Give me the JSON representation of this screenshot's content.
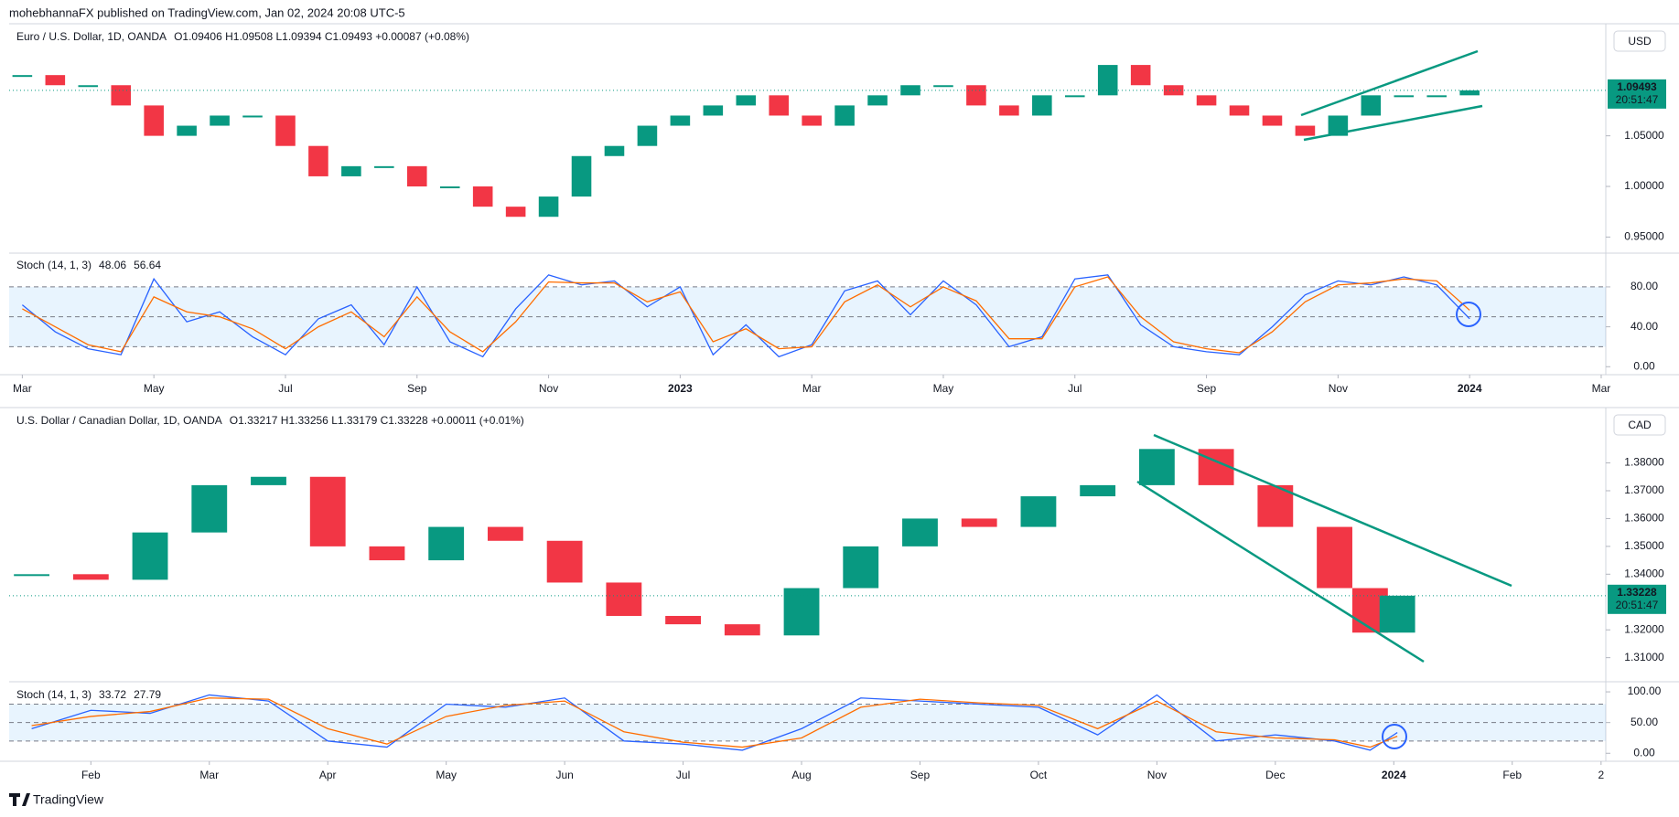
{
  "header": {
    "text": "mohebhannaFX published on TradingView.com, Jan 02, 2024 20:08 UTC-5"
  },
  "footer": {
    "logo": "TradingView"
  },
  "chart_data": [
    {
      "type": "candlestick",
      "title": "Euro / U.S. Dollar, 1D, OANDA",
      "ohlc": "O1.09406 H1.09508 L1.09394 C1.09493 +0.00087 (+0.08%)",
      "currency": "USD",
      "countdown": "20:51:47",
      "up_color": "#089981",
      "down_color": "#f23645",
      "x": [
        0,
        0.5,
        1,
        1.5,
        2,
        2.5,
        3,
        3.5,
        4,
        4.5,
        5,
        5.5,
        6,
        6.5,
        7,
        7.5,
        8,
        8.5,
        9,
        9.5,
        10,
        10.5,
        11,
        11.5,
        12,
        12.5,
        13,
        13.5,
        14,
        14.5,
        15,
        15.5,
        16,
        16.5,
        17,
        17.5,
        18,
        18.5,
        19,
        19.5,
        20,
        20.5,
        21,
        21.5,
        22
      ],
      "values": [
        1.11,
        1.1,
        1.1,
        1.08,
        1.05,
        1.06,
        1.07,
        1.07,
        1.04,
        1.01,
        1.02,
        1.02,
        1.0,
        1.0,
        0.98,
        0.97,
        0.99,
        1.03,
        1.04,
        1.06,
        1.07,
        1.08,
        1.09,
        1.07,
        1.06,
        1.08,
        1.09,
        1.1,
        1.1,
        1.08,
        1.07,
        1.09,
        1.09,
        1.12,
        1.1,
        1.09,
        1.08,
        1.07,
        1.06,
        1.05,
        1.07,
        1.09,
        1.09,
        1.09,
        1.09493
      ],
      "xlim": [
        -0.2,
        24.07
      ],
      "ylim": [
        0.935,
        1.158
      ],
      "yticks": [
        {
          "value": 0.95,
          "label": "0.95000"
        },
        {
          "value": 1.0,
          "label": "1.00000"
        },
        {
          "value": 1.05,
          "label": "1.05000"
        }
      ]
    },
    {
      "type": "line",
      "title": "Stoch (14, 1, 3)",
      "bands": [
        20,
        50,
        80
      ],
      "x": [
        0,
        0.5,
        1,
        1.5,
        2,
        2.5,
        3,
        3.5,
        4,
        4.5,
        5,
        5.5,
        6,
        6.5,
        7,
        7.5,
        8,
        8.5,
        9,
        9.5,
        10,
        10.5,
        11,
        11.5,
        12,
        12.5,
        13,
        13.5,
        14,
        14.5,
        15,
        15.5,
        16,
        16.5,
        17,
        17.5,
        18,
        18.5,
        19,
        19.5,
        20,
        20.5,
        21,
        21.5,
        22
      ],
      "series": [
        {
          "color": "#2962ff",
          "values": [
            62,
            35,
            18,
            12,
            88,
            45,
            55,
            30,
            12,
            48,
            62,
            22,
            80,
            25,
            10,
            58,
            92,
            82,
            86,
            60,
            80,
            12,
            42,
            10,
            22,
            76,
            86,
            52,
            86,
            62,
            20,
            30,
            88,
            92,
            42,
            20,
            15,
            12,
            40,
            72,
            86,
            82,
            90,
            82,
            48.06
          ]
        },
        {
          "color": "#ff6d00",
          "values": [
            58,
            40,
            22,
            15,
            70,
            55,
            50,
            38,
            18,
            40,
            55,
            30,
            70,
            35,
            15,
            45,
            85,
            84,
            84,
            65,
            75,
            25,
            38,
            18,
            20,
            65,
            82,
            60,
            80,
            66,
            28,
            28,
            80,
            90,
            50,
            25,
            18,
            14,
            35,
            65,
            82,
            84,
            88,
            86,
            56.64
          ]
        }
      ],
      "xlim": [
        -0.2,
        24.07
      ],
      "ylim": [
        -8,
        112
      ],
      "yticks": [
        {
          "value": 0,
          "label": "0.00"
        },
        {
          "value": 40,
          "label": "40.00"
        },
        {
          "value": 80,
          "label": "80.00"
        }
      ],
      "xticks": [
        {
          "value": 0,
          "label": "Mar"
        },
        {
          "value": 2,
          "label": "May"
        },
        {
          "value": 4,
          "label": "Jul"
        },
        {
          "value": 6,
          "label": "Sep"
        },
        {
          "value": 8,
          "label": "Nov"
        },
        {
          "value": 10,
          "label": "2023"
        },
        {
          "value": 12,
          "label": "Mar"
        },
        {
          "value": 14,
          "label": "May"
        },
        {
          "value": 16,
          "label": "Jul"
        },
        {
          "value": 18,
          "label": "Sep"
        },
        {
          "value": 20,
          "label": "Nov"
        },
        {
          "value": 22,
          "label": "2024"
        },
        {
          "value": 24,
          "label": "Mar"
        }
      ]
    },
    {
      "type": "candlestick",
      "title": "U.S. Dollar / Canadian Dollar, 1D, OANDA",
      "ohlc": "O1.33217 H1.33256 L1.33179 C1.33228 +0.00011 (+0.01%)",
      "currency": "CAD",
      "countdown": "20:51:47",
      "up_color": "#089981",
      "down_color": "#f23645",
      "x": [
        0.5,
        1,
        1.5,
        2,
        2.5,
        3,
        3.5,
        4,
        4.5,
        5,
        5.5,
        6,
        6.5,
        7,
        7.5,
        8,
        8.5,
        9,
        9.5,
        10,
        10.5,
        11,
        11.5,
        11.8,
        12.03
      ],
      "values": [
        1.34,
        1.338,
        1.355,
        1.372,
        1.375,
        1.35,
        1.345,
        1.357,
        1.352,
        1.337,
        1.325,
        1.322,
        1.318,
        1.335,
        1.35,
        1.36,
        1.357,
        1.368,
        1.372,
        1.385,
        1.372,
        1.357,
        1.335,
        1.319,
        1.33228
      ],
      "xlim": [
        0.31,
        13.79
      ],
      "ylim": [
        1.302,
        1.3989
      ],
      "yticks": [
        {
          "value": 1.31,
          "label": "1.31000"
        },
        {
          "value": 1.32,
          "label": "1.32000"
        },
        {
          "value": 1.34,
          "label": "1.34000"
        },
        {
          "value": 1.35,
          "label": "1.35000"
        },
        {
          "value": 1.36,
          "label": "1.36000"
        },
        {
          "value": 1.37,
          "label": "1.37000"
        },
        {
          "value": 1.38,
          "label": "1.38000"
        }
      ]
    },
    {
      "type": "line",
      "title": "Stoch (14, 1, 3)",
      "bands": [
        20,
        50,
        80
      ],
      "x": [
        0.5,
        1,
        1.5,
        2,
        2.5,
        3,
        3.5,
        4,
        4.5,
        5,
        5.5,
        6,
        6.5,
        7,
        7.5,
        8,
        8.5,
        9,
        9.5,
        10,
        10.5,
        11,
        11.5,
        11.8,
        12.03
      ],
      "series": [
        {
          "color": "#2962ff",
          "values": [
            40,
            70,
            65,
            95,
            85,
            20,
            10,
            80,
            75,
            90,
            20,
            15,
            5,
            40,
            90,
            85,
            80,
            75,
            30,
            95,
            20,
            30,
            20,
            5,
            33.72
          ]
        },
        {
          "color": "#ff6d00",
          "values": [
            45,
            60,
            68,
            90,
            88,
            40,
            15,
            60,
            78,
            85,
            35,
            18,
            10,
            25,
            75,
            88,
            82,
            78,
            40,
            85,
            35,
            25,
            22,
            10,
            27.79
          ]
        }
      ],
      "xlim": [
        0.31,
        13.79
      ],
      "ylim": [
        -13,
        112
      ],
      "yticks": [
        {
          "value": 0,
          "label": "0.00"
        },
        {
          "value": 50,
          "label": "50.00"
        },
        {
          "value": 100,
          "label": "100.00"
        }
      ],
      "xticks": [
        {
          "value": 1,
          "label": "Feb"
        },
        {
          "value": 2,
          "label": "Mar"
        },
        {
          "value": 3,
          "label": "Apr"
        },
        {
          "value": 4,
          "label": "May"
        },
        {
          "value": 5,
          "label": "Jun"
        },
        {
          "value": 6,
          "label": "Jul"
        },
        {
          "value": 7,
          "label": "Aug"
        },
        {
          "value": 8,
          "label": "Sep"
        },
        {
          "value": 9,
          "label": "Oct"
        },
        {
          "value": 10,
          "label": "Nov"
        },
        {
          "value": 11,
          "label": "Dec"
        },
        {
          "value": 12,
          "label": "2024"
        },
        {
          "value": 13,
          "label": "Feb"
        },
        {
          "value": 13.75,
          "label": "2"
        }
      ]
    }
  ]
}
